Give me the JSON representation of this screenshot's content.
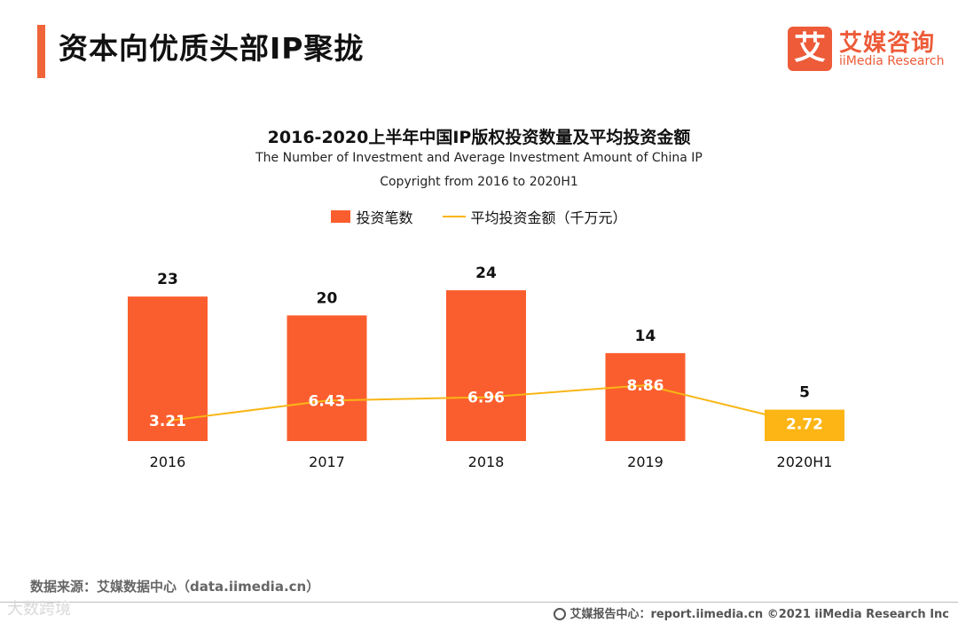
{
  "header": {
    "title": "资本向优质头部IP聚拢",
    "logo_mark": "艾",
    "logo_cn": "艾媒咨询",
    "logo_en": "iiMedia Research"
  },
  "colors": {
    "accent": "#f0643a",
    "bar": "#fb5e2e",
    "bar_highlight": "#fdb515",
    "line": "#f8b616"
  },
  "chart_data": {
    "type": "bar",
    "title": "2016-2020上半年中国IP版权投资数量及平均投资金额",
    "subtitle_line1": "The Number of Investment and Average Investment Amount of China IP",
    "subtitle_line2": "Copyright from 2016 to 2020H1",
    "categories": [
      "2016",
      "2017",
      "2018",
      "2019",
      "2020H1"
    ],
    "series": [
      {
        "name": "投资笔数",
        "type": "bar",
        "values": [
          23,
          20,
          24,
          14,
          5
        ]
      },
      {
        "name": "平均投资金额（千万元）",
        "type": "line",
        "values": [
          3.21,
          6.43,
          6.96,
          8.86,
          2.72
        ]
      }
    ],
    "value_labels_bar": [
      "23",
      "20",
      "24",
      "14",
      "5"
    ],
    "value_labels_line": [
      "3.21",
      "6.43",
      "6.96",
      "8.86",
      "2.72"
    ],
    "legend_placement": "top-center",
    "grid": false
  },
  "footer": {
    "source": "数据来源：艾媒数据中心（data.iimedia.cn）",
    "report": "艾媒报告中心：report.iimedia.cn  ©2021  iiMedia Research  Inc",
    "watermark": "大数跨境"
  }
}
